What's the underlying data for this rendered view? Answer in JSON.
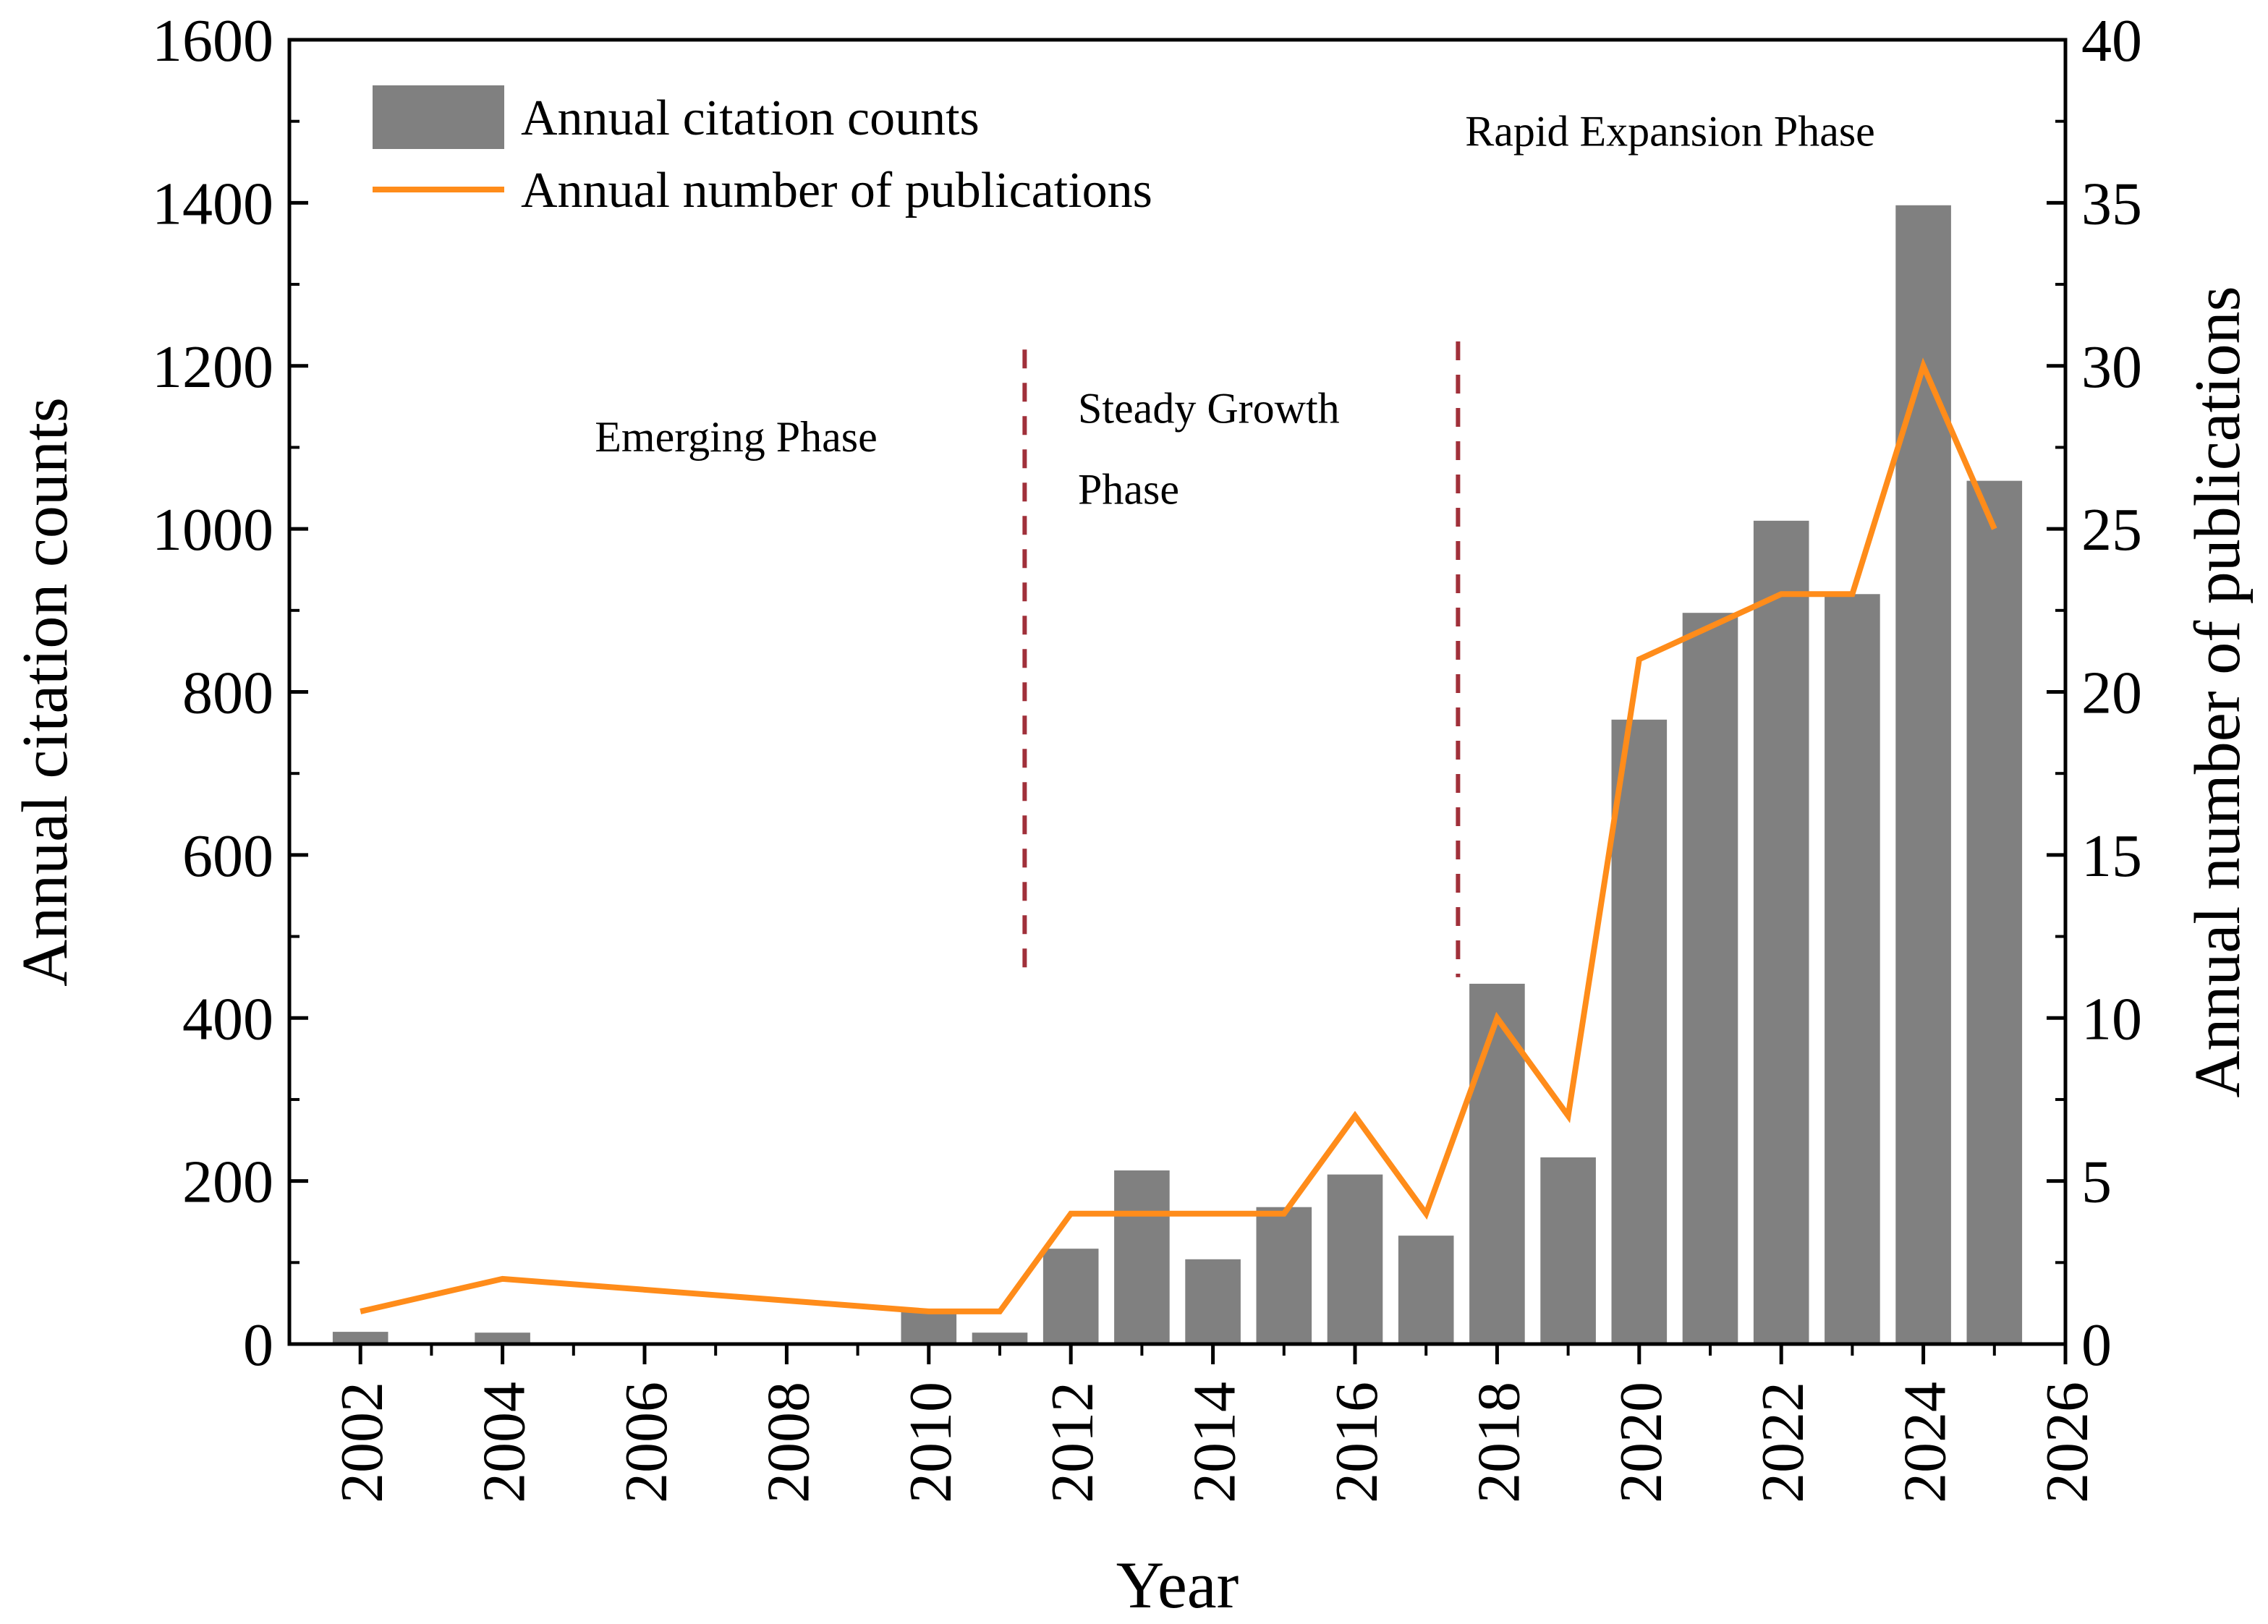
{
  "chart_data": {
    "type": "bar+line",
    "title": "",
    "xlabel": "Year",
    "ylabel": "Annual citation counts",
    "ylabel_right": "Annual number of publications",
    "xlim": [
      2001,
      2026
    ],
    "ylim": [
      0,
      1600
    ],
    "ylim_right": [
      0,
      40
    ],
    "x_ticks": [
      2002,
      2004,
      2006,
      2008,
      2010,
      2012,
      2014,
      2016,
      2018,
      2020,
      2022,
      2024,
      2026
    ],
    "y_ticks": [
      0,
      200,
      400,
      600,
      800,
      1000,
      1200,
      1400,
      1600
    ],
    "y_ticks_right": [
      0,
      5,
      10,
      15,
      20,
      25,
      30,
      35,
      40
    ],
    "series": [
      {
        "name": "Annual citation counts",
        "kind": "bar",
        "axis": "left",
        "color": "#808080",
        "points": [
          {
            "x": 2002,
            "y": 15
          },
          {
            "x": 2004,
            "y": 14
          },
          {
            "x": 2010,
            "y": 40
          },
          {
            "x": 2011,
            "y": 14
          },
          {
            "x": 2012,
            "y": 117
          },
          {
            "x": 2013,
            "y": 213
          },
          {
            "x": 2014,
            "y": 104
          },
          {
            "x": 2015,
            "y": 168
          },
          {
            "x": 2016,
            "y": 208
          },
          {
            "x": 2017,
            "y": 133
          },
          {
            "x": 2018,
            "y": 442
          },
          {
            "x": 2019,
            "y": 229
          },
          {
            "x": 2020,
            "y": 766
          },
          {
            "x": 2021,
            "y": 897
          },
          {
            "x": 2022,
            "y": 1010
          },
          {
            "x": 2023,
            "y": 920
          },
          {
            "x": 2024,
            "y": 1397
          },
          {
            "x": 2025,
            "y": 1059
          }
        ]
      },
      {
        "name": "Annual number of publications",
        "kind": "line",
        "axis": "right",
        "color": "#ff8c1a",
        "points": [
          {
            "x": 2002,
            "y": 1
          },
          {
            "x": 2004,
            "y": 2
          },
          {
            "x": 2010,
            "y": 1
          },
          {
            "x": 2011,
            "y": 1
          },
          {
            "x": 2012,
            "y": 4
          },
          {
            "x": 2013,
            "y": 4
          },
          {
            "x": 2014,
            "y": 4
          },
          {
            "x": 2015,
            "y": 4
          },
          {
            "x": 2016,
            "y": 7
          },
          {
            "x": 2017,
            "y": 4
          },
          {
            "x": 2018,
            "y": 10
          },
          {
            "x": 2019,
            "y": 7
          },
          {
            "x": 2020,
            "y": 21
          },
          {
            "x": 2021,
            "y": 22
          },
          {
            "x": 2022,
            "y": 23
          },
          {
            "x": 2023,
            "y": 23
          },
          {
            "x": 2024,
            "y": 30
          },
          {
            "x": 2025,
            "y": 25
          }
        ]
      }
    ],
    "phase_dividers": [
      {
        "x": 2011.35,
        "y_from": 450,
        "y_to": 1220,
        "color": "#a0303a"
      },
      {
        "x": 2017.45,
        "y_from": 450,
        "y_to": 1230,
        "color": "#a0303a"
      }
    ],
    "annotations": [
      {
        "id": "emerging",
        "lines": [
          "Emerging Phase"
        ],
        "x": 2005.3,
        "y": 1095
      },
      {
        "id": "steady",
        "lines": [
          "Steady Growth",
          "Phase"
        ],
        "x": 2012.1,
        "y": 1130
      },
      {
        "id": "rapid",
        "lines": [
          "Rapid Expansion Phase"
        ],
        "x": 2017.55,
        "y": 1470
      }
    ],
    "legend": {
      "position": "top-left",
      "entries": [
        {
          "label": "Annual citation counts",
          "kind": "bar"
        },
        {
          "label": "Annual number of publications",
          "kind": "line"
        }
      ]
    },
    "grid": false
  }
}
